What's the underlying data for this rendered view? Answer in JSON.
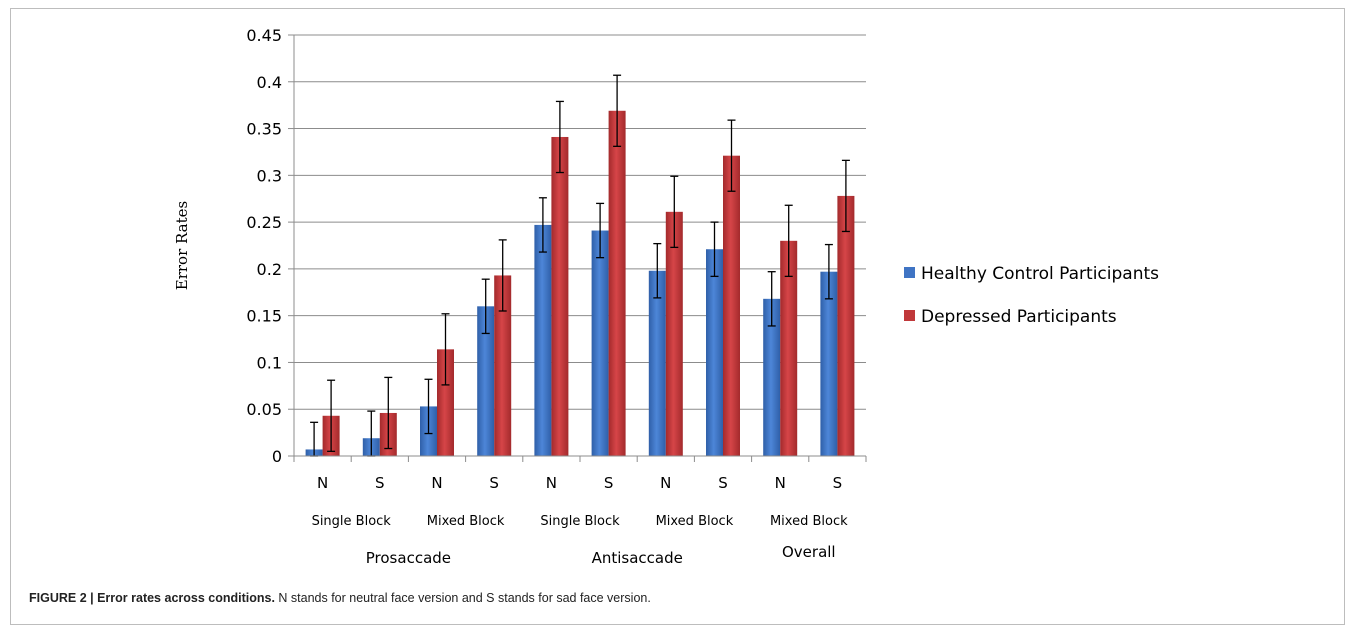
{
  "chart_data": {
    "type": "bar",
    "title": "",
    "xlabel": "",
    "ylabel": "Error Rates",
    "ylim": [
      0,
      0.45
    ],
    "yticks": [
      "0",
      "0.05",
      "0.1",
      "0.15",
      "0.2",
      "0.25",
      "0.3",
      "0.35",
      "0.4",
      "0.45"
    ],
    "grid": true,
    "legend_position": "right",
    "categories": [
      "N",
      "S",
      "N",
      "S",
      "N",
      "S",
      "N",
      "S",
      "N",
      "S"
    ],
    "subgroups": [
      "Single Block",
      "Mixed Block",
      "Single Block",
      "Mixed Block",
      "Mixed Block"
    ],
    "groups": [
      "Prosaccade",
      "Antisaccade",
      "Overall"
    ],
    "series": [
      {
        "name": "Healthy Control Participants",
        "color": "#3f74c4",
        "values": [
          0.007,
          0.019,
          0.053,
          0.16,
          0.247,
          0.241,
          0.198,
          0.221,
          0.168,
          0.197
        ],
        "errors": [
          0.029,
          0.029,
          0.029,
          0.029,
          0.029,
          0.029,
          0.029,
          0.029,
          0.029,
          0.029
        ]
      },
      {
        "name": "Depressed Participants",
        "color": "#c0383a",
        "values": [
          0.043,
          0.046,
          0.114,
          0.193,
          0.341,
          0.369,
          0.261,
          0.321,
          0.23,
          0.278
        ],
        "errors": [
          0.038,
          0.038,
          0.038,
          0.038,
          0.038,
          0.038,
          0.038,
          0.038,
          0.038,
          0.038
        ]
      }
    ]
  },
  "caption": {
    "bold": "FIGURE 2 | Error rates across conditions.",
    "text": " N stands for neutral face version and S stands for sad face version."
  }
}
